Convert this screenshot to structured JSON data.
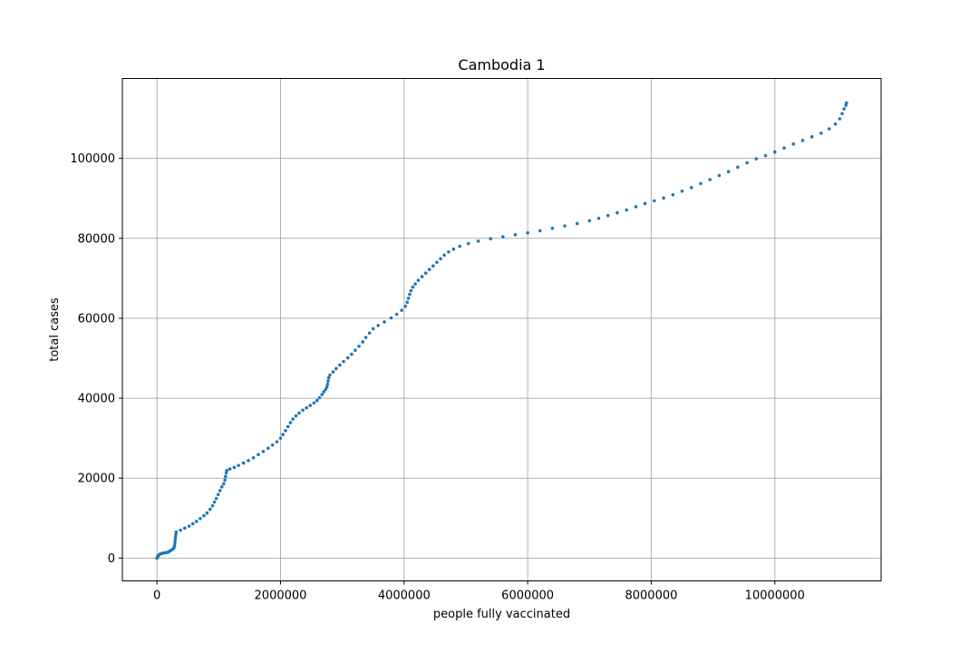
{
  "chart_data": {
    "type": "scatter",
    "title": "Cambodia 1",
    "xlabel": "people fully vaccinated",
    "ylabel": "total cases",
    "xlim": [
      -560000,
      11720000
    ],
    "ylim": [
      -5700,
      120000
    ],
    "xticks": [
      0,
      2000000,
      4000000,
      6000000,
      8000000,
      10000000
    ],
    "xtick_labels": [
      "0",
      "2000000",
      "4000000",
      "6000000",
      "8000000",
      "10000000"
    ],
    "yticks": [
      0,
      20000,
      40000,
      60000,
      80000,
      100000
    ],
    "ytick_labels": [
      "0",
      "20000",
      "40000",
      "60000",
      "80000",
      "100000"
    ],
    "grid": true,
    "marker_color": "#1f77b4",
    "series": [
      {
        "points": [
          [
            0,
            0
          ],
          [
            10000,
            300
          ],
          [
            20000,
            600
          ],
          [
            40000,
            900
          ],
          [
            60000,
            1100
          ],
          [
            90000,
            1200
          ],
          [
            120000,
            1300
          ],
          [
            150000,
            1400
          ],
          [
            180000,
            1500
          ],
          [
            200000,
            1700
          ],
          [
            220000,
            1900
          ],
          [
            240000,
            2100
          ],
          [
            260000,
            2300
          ],
          [
            275000,
            2600
          ],
          [
            285000,
            3100
          ],
          [
            290000,
            3800
          ],
          [
            295000,
            4500
          ],
          [
            300000,
            5200
          ],
          [
            305000,
            5900
          ],
          [
            310000,
            6500
          ],
          [
            380000,
            7000
          ],
          [
            450000,
            7500
          ],
          [
            520000,
            8000
          ],
          [
            580000,
            8600
          ],
          [
            640000,
            9200
          ],
          [
            700000,
            9900
          ],
          [
            760000,
            10600
          ],
          [
            810000,
            11300
          ],
          [
            860000,
            12200
          ],
          [
            900000,
            13100
          ],
          [
            930000,
            14000
          ],
          [
            960000,
            14900
          ],
          [
            990000,
            15900
          ],
          [
            1020000,
            16900
          ],
          [
            1050000,
            17800
          ],
          [
            1080000,
            18600
          ],
          [
            1100000,
            19500
          ],
          [
            1110000,
            20400
          ],
          [
            1120000,
            21300
          ],
          [
            1130000,
            21900
          ],
          [
            1180000,
            22300
          ],
          [
            1250000,
            22700
          ],
          [
            1320000,
            23200
          ],
          [
            1400000,
            23800
          ],
          [
            1480000,
            24400
          ],
          [
            1560000,
            25100
          ],
          [
            1640000,
            25900
          ],
          [
            1720000,
            26700
          ],
          [
            1800000,
            27500
          ],
          [
            1870000,
            28300
          ],
          [
            1940000,
            29100
          ],
          [
            2000000,
            30000
          ],
          [
            2040000,
            30900
          ],
          [
            2080000,
            31900
          ],
          [
            2120000,
            32900
          ],
          [
            2160000,
            33900
          ],
          [
            2200000,
            34800
          ],
          [
            2250000,
            35600
          ],
          [
            2300000,
            36300
          ],
          [
            2360000,
            37000
          ],
          [
            2420000,
            37600
          ],
          [
            2480000,
            38200
          ],
          [
            2540000,
            38800
          ],
          [
            2590000,
            39400
          ],
          [
            2630000,
            40100
          ],
          [
            2670000,
            40900
          ],
          [
            2700000,
            41600
          ],
          [
            2730000,
            42200
          ],
          [
            2750000,
            42800
          ],
          [
            2760000,
            43500
          ],
          [
            2770000,
            44300
          ],
          [
            2780000,
            45100
          ],
          [
            2800000,
            45800
          ],
          [
            2850000,
            46600
          ],
          [
            2900000,
            47400
          ],
          [
            2960000,
            48300
          ],
          [
            3020000,
            49200
          ],
          [
            3090000,
            50100
          ],
          [
            3150000,
            51000
          ],
          [
            3210000,
            52000
          ],
          [
            3270000,
            53000
          ],
          [
            3330000,
            54100
          ],
          [
            3380000,
            55200
          ],
          [
            3440000,
            56300
          ],
          [
            3500000,
            57400
          ],
          [
            3580000,
            58200
          ],
          [
            3680000,
            59100
          ],
          [
            3790000,
            60100
          ],
          [
            3880000,
            61000
          ],
          [
            3960000,
            62000
          ],
          [
            4020000,
            63000
          ],
          [
            4050000,
            64000
          ],
          [
            4070000,
            65000
          ],
          [
            4090000,
            66000
          ],
          [
            4110000,
            66900
          ],
          [
            4140000,
            67800
          ],
          [
            4180000,
            68600
          ],
          [
            4230000,
            69500
          ],
          [
            4290000,
            70400
          ],
          [
            4350000,
            71300
          ],
          [
            4410000,
            72200
          ],
          [
            4470000,
            73100
          ],
          [
            4530000,
            74000
          ],
          [
            4590000,
            74900
          ],
          [
            4650000,
            75800
          ],
          [
            4720000,
            76600
          ],
          [
            4800000,
            77300
          ],
          [
            4900000,
            78000
          ],
          [
            5040000,
            78700
          ],
          [
            5200000,
            79300
          ],
          [
            5400000,
            79900
          ],
          [
            5600000,
            80400
          ],
          [
            5800000,
            80900
          ],
          [
            6000000,
            81400
          ],
          [
            6200000,
            81900
          ],
          [
            6400000,
            82500
          ],
          [
            6600000,
            83100
          ],
          [
            6800000,
            83700
          ],
          [
            7000000,
            84400
          ],
          [
            7150000,
            85000
          ],
          [
            7300000,
            85700
          ],
          [
            7450000,
            86400
          ],
          [
            7600000,
            87100
          ],
          [
            7750000,
            87900
          ],
          [
            7900000,
            88700
          ],
          [
            8050000,
            89400
          ],
          [
            8200000,
            90100
          ],
          [
            8350000,
            90900
          ],
          [
            8500000,
            91800
          ],
          [
            8650000,
            92700
          ],
          [
            8800000,
            93700
          ],
          [
            8950000,
            94700
          ],
          [
            9100000,
            95700
          ],
          [
            9250000,
            96700
          ],
          [
            9400000,
            97800
          ],
          [
            9550000,
            98900
          ],
          [
            9700000,
            99900
          ],
          [
            9850000,
            100700
          ],
          [
            10000000,
            101600
          ],
          [
            10150000,
            102600
          ],
          [
            10300000,
            103600
          ],
          [
            10450000,
            104500
          ],
          [
            10600000,
            105400
          ],
          [
            10750000,
            106300
          ],
          [
            10880000,
            107400
          ],
          [
            10980000,
            108600
          ],
          [
            11050000,
            109900
          ],
          [
            11090000,
            111200
          ],
          [
            11120000,
            112400
          ],
          [
            11150000,
            113300
          ],
          [
            11160000,
            113900
          ]
        ]
      }
    ]
  }
}
